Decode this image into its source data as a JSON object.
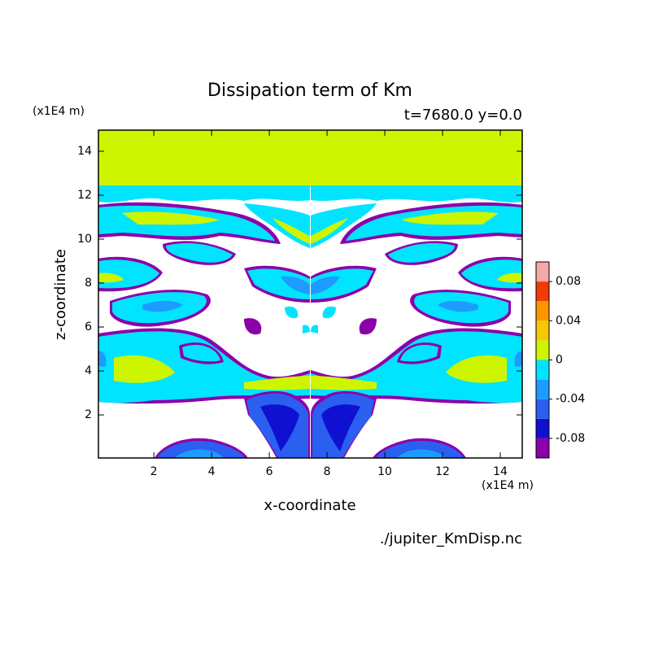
{
  "chart_data": {
    "type": "contour",
    "title": "Dissipation term of Km",
    "subtitle": "t=7680.0 y=0.0",
    "x_label": "x-coordinate",
    "y_label": "z-coordinate",
    "x_unit": "(x1E4 m)",
    "y_unit": "(x1E4 m)",
    "source": "./jupiter_KmDisp.nc",
    "xlim": [
      0.08,
      14.76
    ],
    "ylim": [
      0.04,
      14.96
    ],
    "xticks": [
      2,
      4,
      6,
      8,
      10,
      12,
      14
    ],
    "yticks": [
      2,
      4,
      6,
      8,
      10,
      12,
      14
    ],
    "colorbar": {
      "levels": [
        -0.1,
        -0.08,
        -0.06,
        -0.04,
        -0.02,
        0,
        0.02,
        0.04,
        0.06,
        0.08,
        0.1
      ],
      "colors": [
        "#8c00aa",
        "#1010d0",
        "#2a5ff0",
        "#1e9bff",
        "#00e4ff",
        "#cdf500",
        "#f5c800",
        "#ff9600",
        "#f03c00",
        "#f5a8a8"
      ],
      "ticks": [
        -0.08,
        -0.04,
        0,
        0.04,
        0.08
      ]
    }
  }
}
